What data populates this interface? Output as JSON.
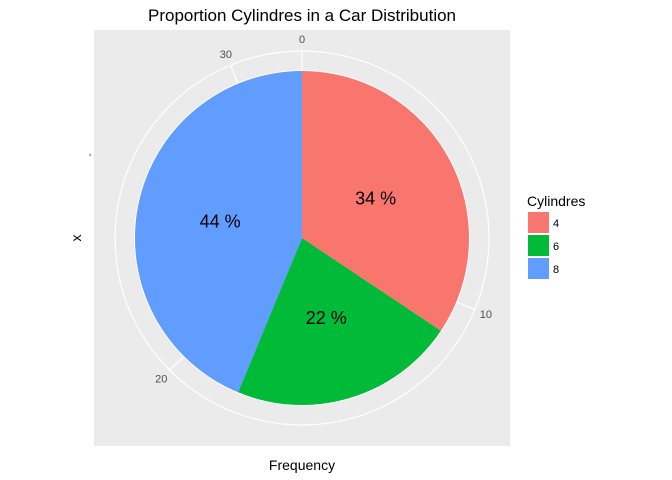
{
  "chart_data": {
    "type": "pie",
    "title": "Proportion Cylindres in a Car Distribution",
    "xlabel": "Frequency",
    "ylabel": "x",
    "y_tick": "-",
    "legend_title": "Cylindres",
    "legend_position": "right",
    "categories": [
      "4",
      "6",
      "8"
    ],
    "values": [
      11,
      7,
      14
    ],
    "total": 32,
    "labels": [
      "34 %",
      "22 %",
      "44 %"
    ],
    "colors": [
      "#F8766D",
      "#00BA38",
      "#619CFF"
    ],
    "radial_ticks": [
      "0",
      "10",
      "20",
      "30"
    ],
    "radial_tick_values": [
      0,
      10,
      20,
      30
    ],
    "panel_background": "#EBEBEB",
    "grid": true
  }
}
